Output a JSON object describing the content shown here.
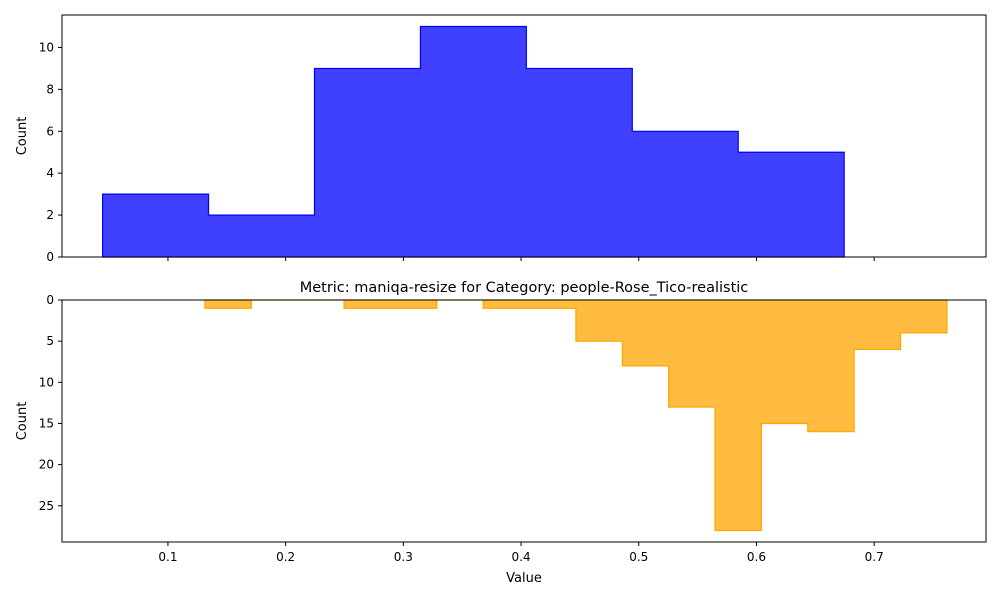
{
  "chart_data": [
    {
      "type": "histogram",
      "title": "",
      "xlabel": "",
      "ylabel": "Count",
      "xlim": [
        0.01,
        0.795
      ],
      "ylim": [
        0,
        11.55
      ],
      "y_inverted": false,
      "x_ticks": [
        0.1,
        0.2,
        0.3,
        0.4,
        0.5,
        0.6,
        0.7
      ],
      "x_tick_labels_shown": false,
      "y_ticks": [
        0,
        2,
        4,
        6,
        8,
        10
      ],
      "series": [
        {
          "color": "#0000ff",
          "bin_edges": [
            0.0445,
            0.1345,
            0.2245,
            0.3145,
            0.4045,
            0.4945,
            0.5845,
            0.6745
          ],
          "counts": [
            3,
            2,
            9,
            11,
            9,
            6,
            5
          ]
        }
      ]
    },
    {
      "type": "histogram",
      "title": "Metric: maniqa-resize for Category: people-Rose_Tico-realistic",
      "xlabel": "Value",
      "ylabel": "Count",
      "xlim": [
        0.01,
        0.795
      ],
      "ylim": [
        29.4,
        0
      ],
      "y_inverted": true,
      "x_ticks": [
        0.1,
        0.2,
        0.3,
        0.4,
        0.5,
        0.6,
        0.7
      ],
      "x_tick_labels_shown": true,
      "y_ticks": [
        0,
        5,
        10,
        15,
        20,
        25
      ],
      "series": [
        {
          "color": "#ffa500",
          "bin_edges": [
            0.1314,
            0.1708,
            0.2102,
            0.2496,
            0.289,
            0.3284,
            0.3678,
            0.4072,
            0.4466,
            0.486,
            0.5254,
            0.5648,
            0.6042,
            0.6436,
            0.683,
            0.7224,
            0.7618
          ],
          "counts": [
            1,
            0,
            0,
            1,
            1,
            0,
            1,
            1,
            5,
            8,
            13,
            28,
            15,
            16,
            6,
            4
          ]
        }
      ]
    }
  ]
}
